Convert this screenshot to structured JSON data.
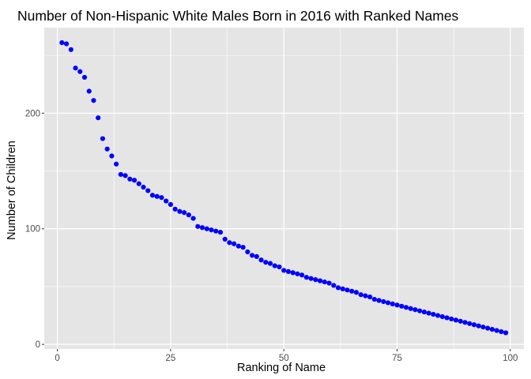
{
  "chart_data": {
    "type": "scatter",
    "title": "Number of Non-Hispanic White Males Born in 2016 with Ranked Names",
    "xlabel": "Ranking of Name",
    "ylabel": "Number of Children",
    "xlim": [
      -2.9,
      103
    ],
    "ylim": [
      -4,
      274
    ],
    "xticks": [
      0,
      25,
      50,
      75,
      100
    ],
    "xtick_labels": [
      "0",
      "25",
      "50",
      "75",
      "100"
    ],
    "yticks": [
      0,
      100,
      200
    ],
    "ytick_labels": [
      "0",
      "100",
      "200"
    ],
    "grid": true,
    "legend": "none",
    "point_color": "#0000ff",
    "panel_color": "#e5e5e5",
    "grid_color": "#ffffff",
    "series": [
      {
        "x": [
          1,
          2,
          3,
          4,
          5,
          6,
          7,
          8,
          9,
          10,
          11,
          12,
          13,
          14,
          15,
          16,
          17,
          18,
          19,
          20,
          21,
          22,
          23,
          24,
          25,
          26,
          27,
          28,
          29,
          30,
          31,
          32,
          33,
          34,
          35,
          36,
          37,
          38,
          39,
          40,
          41,
          42,
          43,
          44,
          45,
          46,
          47,
          48,
          49,
          50,
          51,
          52,
          53,
          54,
          55,
          56,
          57,
          58,
          59,
          60,
          61,
          62,
          63,
          64,
          65,
          66,
          67,
          68,
          69,
          70,
          71,
          72,
          73,
          74,
          75,
          76,
          77,
          78,
          79,
          80,
          81,
          82,
          83,
          84,
          85,
          86,
          87,
          88,
          89,
          90,
          91,
          92,
          93,
          94,
          95,
          96,
          97,
          98,
          99
        ],
        "y": [
          261,
          260,
          255,
          239,
          236,
          231,
          219,
          211,
          196,
          178,
          169,
          163,
          156,
          147,
          146,
          143,
          142,
          139,
          136,
          133,
          129,
          128,
          127,
          124,
          121,
          117,
          115,
          114,
          112,
          109,
          102,
          101,
          100,
          99,
          98,
          97,
          91,
          88,
          87,
          85,
          84,
          80,
          77,
          76,
          73,
          71,
          70,
          68,
          67,
          64,
          63,
          62,
          61,
          60,
          58,
          57,
          56,
          55,
          54,
          53,
          51,
          49,
          48,
          47,
          46,
          45,
          43,
          42,
          41,
          39,
          38,
          37,
          36,
          35,
          34,
          33,
          32,
          31,
          30,
          29,
          28,
          27,
          26,
          25,
          24,
          23,
          22,
          21,
          20,
          19,
          18,
          17,
          16,
          15,
          14,
          13,
          12,
          11,
          10
        ]
      }
    ]
  }
}
